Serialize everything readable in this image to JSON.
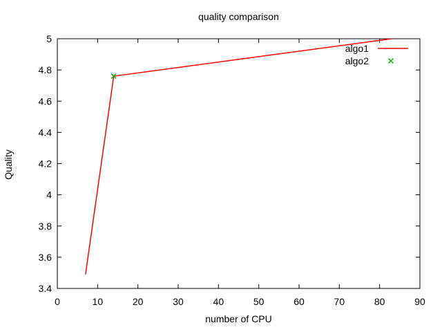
{
  "chart_data": {
    "type": "line",
    "title": "quality comparison",
    "xlabel": "number of CPU",
    "ylabel": "Quality",
    "xlim": [
      0,
      90
    ],
    "ylim": [
      3.4,
      5
    ],
    "xticks": [
      0,
      10,
      20,
      30,
      40,
      50,
      60,
      70,
      80,
      90
    ],
    "yticks": [
      3.4,
      3.6,
      3.8,
      4,
      4.2,
      4.4,
      4.6,
      4.8,
      5
    ],
    "grid": false,
    "legend_position": "top-right-inside",
    "background_color": "#ffffff",
    "axis_color": "#000000",
    "series": [
      {
        "name": "algo1",
        "style": "line",
        "color": "#ff0000",
        "points": [
          [
            7,
            3.49
          ],
          [
            14,
            4.76
          ],
          [
            83,
            5.0
          ]
        ]
      },
      {
        "name": "algo2",
        "style": "points",
        "marker": "x",
        "color": "#00b400",
        "points": [
          [
            14,
            4.76
          ]
        ]
      }
    ]
  }
}
